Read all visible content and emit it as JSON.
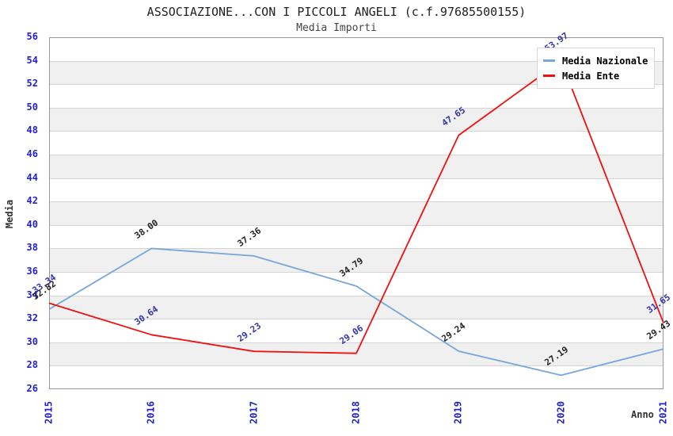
{
  "header": {
    "title": "ASSOCIAZIONE...CON I PICCOLI ANGELI (c.f.97685500155)",
    "subtitle": "Media Importi"
  },
  "axes": {
    "y_label": "Media",
    "x_label": "Anno"
  },
  "legend": {
    "items": [
      {
        "label": "Media Nazionale",
        "color": "#76a6da"
      },
      {
        "label": "Media Ente",
        "color": "#ee1111"
      }
    ]
  },
  "colors": {
    "tick_label": "#2222cc",
    "band_gray": "#f0f0f0",
    "gridline": "#d4d4d4",
    "plot_border": "#999999",
    "nazionale_line": "#76a6da",
    "ente_line": "#ee1111",
    "nazionale_point_label": "#222222",
    "ente_point_label": "#3333aa"
  },
  "chart_data": {
    "type": "line",
    "title": "ASSOCIAZIONE...CON I PICCOLI ANGELI (c.f.97685500155)",
    "subtitle": "Media Importi",
    "xlabel": "Anno",
    "ylabel": "Media",
    "categories": [
      "2015",
      "2016",
      "2017",
      "2018",
      "2019",
      "2020",
      "2021"
    ],
    "series": [
      {
        "name": "Media Nazionale",
        "color": "#76a6da",
        "values": [
          32.82,
          38.0,
          37.36,
          34.79,
          29.24,
          27.19,
          29.43
        ],
        "labels": [
          "32.82",
          "38.00",
          "37.36",
          "34.79",
          "29.24",
          "27.19",
          "29.43"
        ],
        "label_color": "#222222"
      },
      {
        "name": "Media Ente",
        "color": "#ee1111",
        "values": [
          33.34,
          30.64,
          29.23,
          29.06,
          47.65,
          53.97,
          31.65
        ],
        "labels": [
          "33.34",
          "30.64",
          "29.23",
          "29.06",
          "47.65",
          "53.97",
          "31.65"
        ],
        "label_color": "#3333aa"
      }
    ],
    "ylim": [
      26,
      56
    ],
    "ytick_step": 2,
    "grid": "horizontal-alternating-bands",
    "legend_position": "top-right"
  }
}
